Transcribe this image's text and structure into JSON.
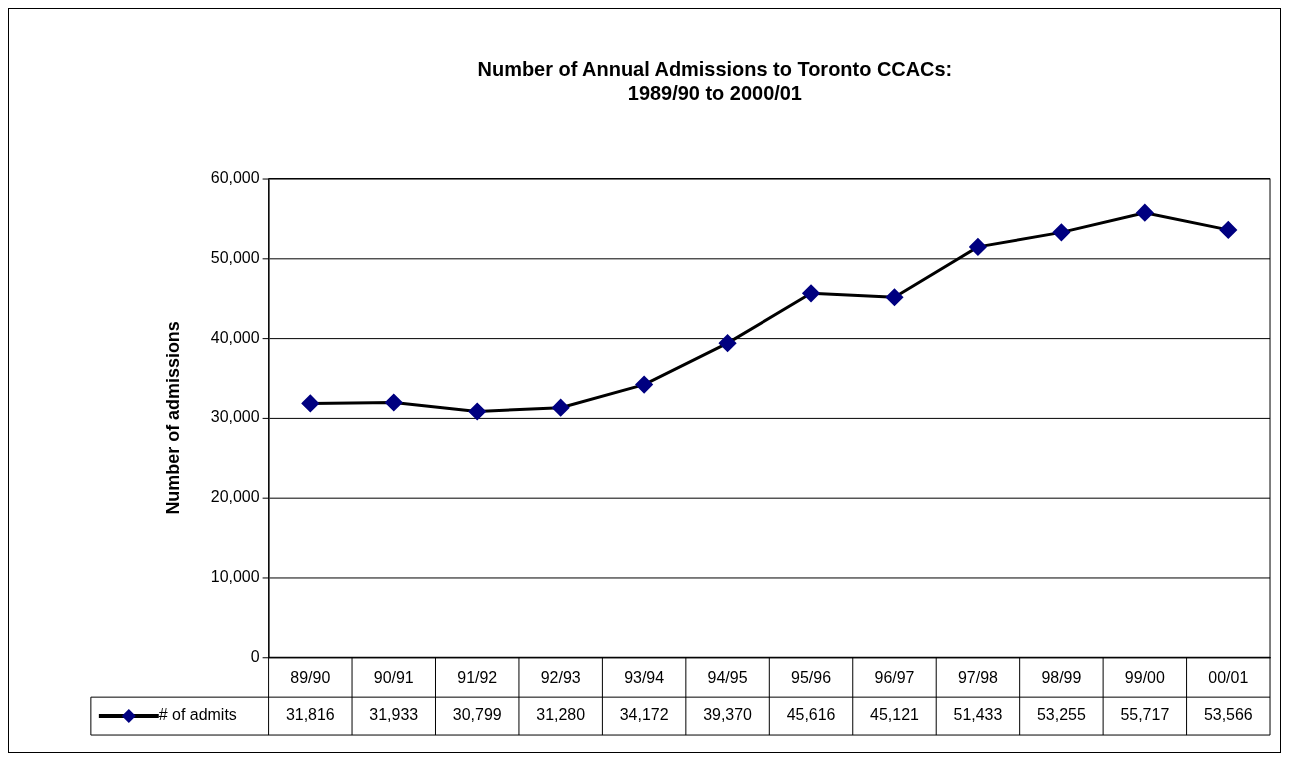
{
  "chart_data": {
    "type": "line",
    "title": "Number of Annual Admissions to Toronto CCACs:\n1989/90 to 2000/01",
    "ylabel": "Number of admissions",
    "categories": [
      "89/90",
      "90/91",
      "91/92",
      "92/93",
      "93/94",
      "94/95",
      "95/96",
      "96/97",
      "97/98",
      "98/99",
      "99/00",
      "00/01"
    ],
    "series": [
      {
        "name": "# of admits",
        "color": "#000080",
        "values": [
          31816,
          31933,
          30799,
          31280,
          34172,
          39370,
          45616,
          45121,
          51433,
          53255,
          55717,
          53566
        ],
        "value_labels": [
          "31,816",
          "31,933",
          "30,799",
          "31,280",
          "34,172",
          "39,370",
          "45,616",
          "45,121",
          "51,433",
          "53,255",
          "55,717",
          "53,566"
        ]
      }
    ],
    "ylim": [
      0,
      60000
    ],
    "yticks": [
      {
        "value": 0,
        "label": "0"
      },
      {
        "value": 10000,
        "label": "10,000"
      },
      {
        "value": 20000,
        "label": "20,000"
      },
      {
        "value": 30000,
        "label": "30,000"
      },
      {
        "value": 40000,
        "label": "40,000"
      },
      {
        "value": 50000,
        "label": "50,000"
      },
      {
        "value": 60000,
        "label": "60,000"
      }
    ],
    "grid": "y",
    "legend": "bottom",
    "marker": "diamond",
    "line_style": "solid"
  }
}
